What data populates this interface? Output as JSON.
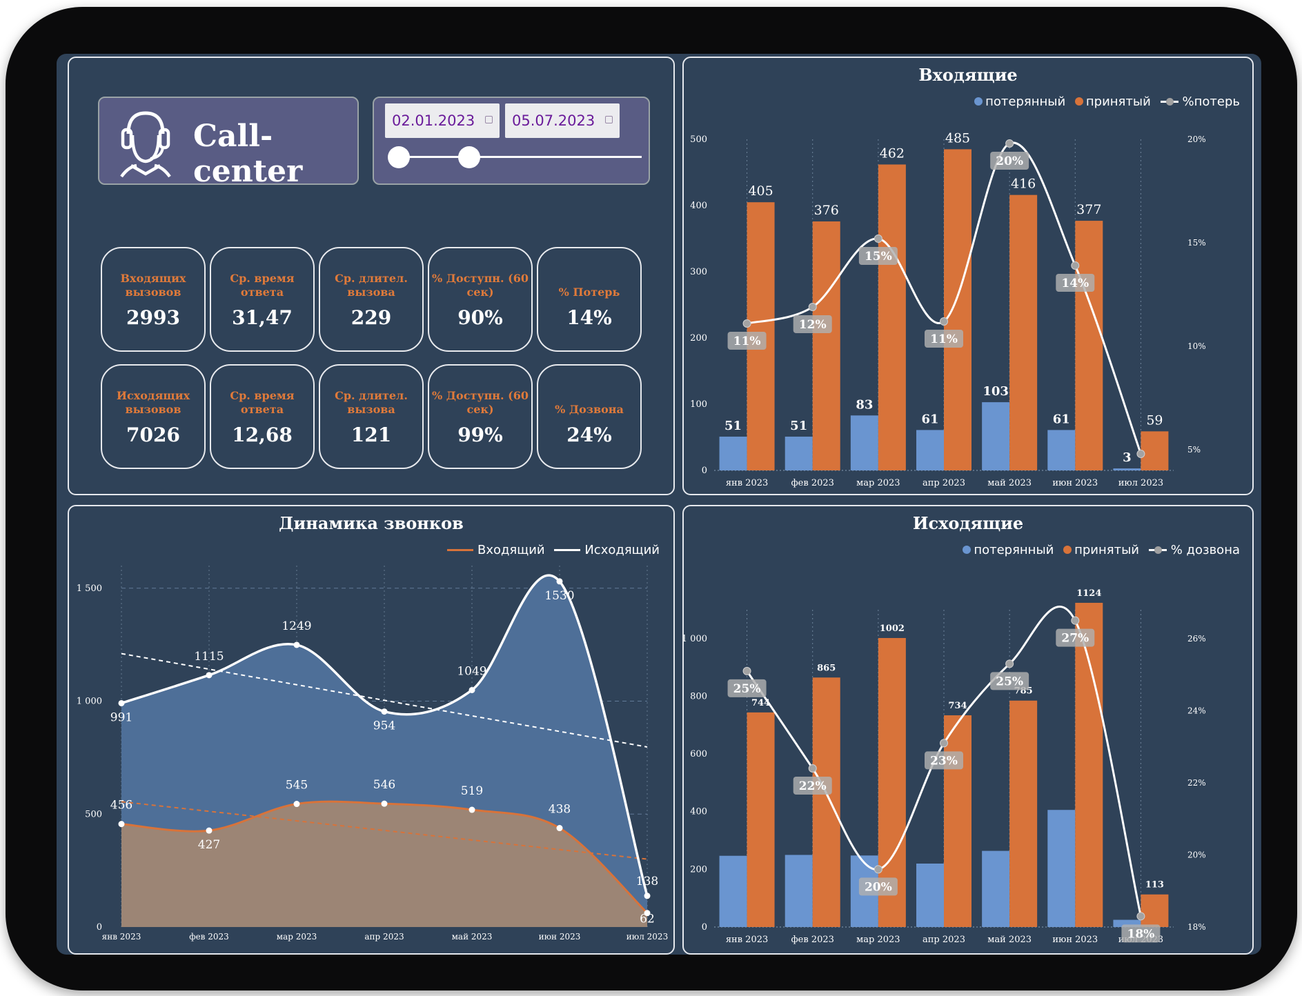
{
  "app": {
    "title": "Call-center",
    "date_from": "02.01.2023",
    "date_to": "05.07.2023"
  },
  "kpis": {
    "incoming": [
      {
        "label": "Входящих вызовов",
        "value": "2993"
      },
      {
        "label": "Ср. время ответа",
        "value": "31,47"
      },
      {
        "label": "Ср. длител. вызова",
        "value": "229"
      },
      {
        "label": "% Доступн. (60 сек)",
        "value": "90%"
      },
      {
        "label": "% Потерь",
        "value": "14%"
      }
    ],
    "outgoing": [
      {
        "label": "Исходящих вызовов",
        "value": "7026"
      },
      {
        "label": "Ср. время ответа",
        "value": "12,68"
      },
      {
        "label": "Ср. длител. вызова",
        "value": "121"
      },
      {
        "label": "% Доступн. (60 сек)",
        "value": "99%"
      },
      {
        "label": "% Дозвона",
        "value": "24%"
      }
    ]
  },
  "colors": {
    "blue": "#6a95d0",
    "orange": "#d8733a",
    "line": "#ffffff",
    "marker": "#a3a3a3",
    "area_blue": "#4e6f98",
    "area_orange": "#9c8575"
  },
  "chart_data": [
    {
      "id": "incoming",
      "type": "bar",
      "title": "Входящие",
      "categories": [
        "янв 2023",
        "фев 2023",
        "мар 2023",
        "апр 2023",
        "май 2023",
        "июн 2023",
        "июл 2023"
      ],
      "series": [
        {
          "name": "потерянный",
          "values": [
            51,
            51,
            83,
            61,
            103,
            61,
            3
          ]
        },
        {
          "name": "принятый",
          "values": [
            405,
            376,
            462,
            485,
            416,
            377,
            59
          ]
        },
        {
          "name": "%потерь",
          "axis": "secondary",
          "values": [
            11.1,
            11.9,
            15.2,
            11.2,
            19.8,
            13.9,
            4.8
          ],
          "labels": [
            "11%",
            "12%",
            "15%",
            "11%",
            "20%",
            "14%",
            ""
          ]
        }
      ],
      "ylim": [
        0,
        500
      ],
      "yticks": [
        0,
        100,
        200,
        300,
        400,
        500
      ],
      "ytick_labels": [
        "0",
        "100",
        "200",
        "300",
        "400",
        "500"
      ],
      "y2lim": [
        4,
        20
      ],
      "y2ticks": [
        5,
        10,
        15,
        20
      ],
      "y2tick_labels": [
        "5%",
        "10%",
        "15%",
        "20%"
      ]
    },
    {
      "id": "dynamics",
      "type": "area",
      "title": "Динамика звонков",
      "categories": [
        "янв 2023",
        "фев 2023",
        "мар 2023",
        "апр 2023",
        "май 2023",
        "июн 2023",
        "июл 2023"
      ],
      "series": [
        {
          "name": "Входящий",
          "values": [
            456,
            427,
            545,
            546,
            519,
            438,
            62
          ]
        },
        {
          "name": "Исходящий",
          "values": [
            991,
            1115,
            1249,
            954,
            1049,
            1530,
            138
          ]
        }
      ],
      "ylim": [
        0,
        1600
      ],
      "yticks": [
        0,
        500,
        1000,
        1500
      ],
      "ytick_labels": [
        "0",
        "500",
        "1 000",
        "1 500"
      ]
    },
    {
      "id": "outgoing",
      "type": "bar",
      "title": "Исходящие",
      "categories": [
        "янв 2023",
        "фев 2023",
        "мар 2023",
        "апр 2023",
        "май 2023",
        "июн 2023",
        "июл 2023"
      ],
      "series": [
        {
          "name": "потерянный",
          "values": [
            247,
            250,
            248,
            220,
            264,
            406,
            25
          ]
        },
        {
          "name": "принятый",
          "values": [
            744,
            865,
            1002,
            734,
            785,
            1124,
            113
          ]
        },
        {
          "name": "% дозвона",
          "axis": "secondary",
          "values": [
            25.1,
            22.4,
            19.6,
            23.1,
            25.3,
            26.5,
            18.3
          ],
          "labels": [
            "25%",
            "22%",
            "20%",
            "23%",
            "25%",
            "27%",
            "18%"
          ]
        }
      ],
      "ylim": [
        0,
        1100
      ],
      "yticks": [
        0,
        200,
        400,
        600,
        800,
        1000
      ],
      "ytick_labels": [
        "0",
        "200",
        "400",
        "600",
        "800",
        "1 000"
      ],
      "y2lim": [
        18,
        26.8
      ],
      "y2ticks": [
        18,
        20,
        22,
        24,
        26
      ],
      "y2tick_labels": [
        "18%",
        "20%",
        "22%",
        "24%",
        "26%"
      ]
    }
  ]
}
